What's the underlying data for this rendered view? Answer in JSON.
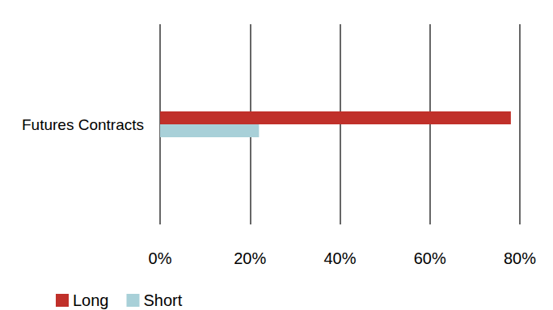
{
  "chart_data": {
    "type": "bar",
    "orientation": "horizontal",
    "categories": [
      "Futures Contracts"
    ],
    "series": [
      {
        "name": "Long",
        "color": "#c0302a",
        "values": [
          78
        ]
      },
      {
        "name": "Short",
        "color": "#a8d0d8",
        "values": [
          22
        ]
      }
    ],
    "xlim": [
      0,
      80
    ],
    "xticks": [
      {
        "value": 0,
        "label": "0%"
      },
      {
        "value": 20,
        "label": "20%"
      },
      {
        "value": 40,
        "label": "40%"
      },
      {
        "value": 60,
        "label": "60%"
      },
      {
        "value": 80,
        "label": "80%"
      }
    ],
    "grid": true,
    "legend": "bottom"
  }
}
